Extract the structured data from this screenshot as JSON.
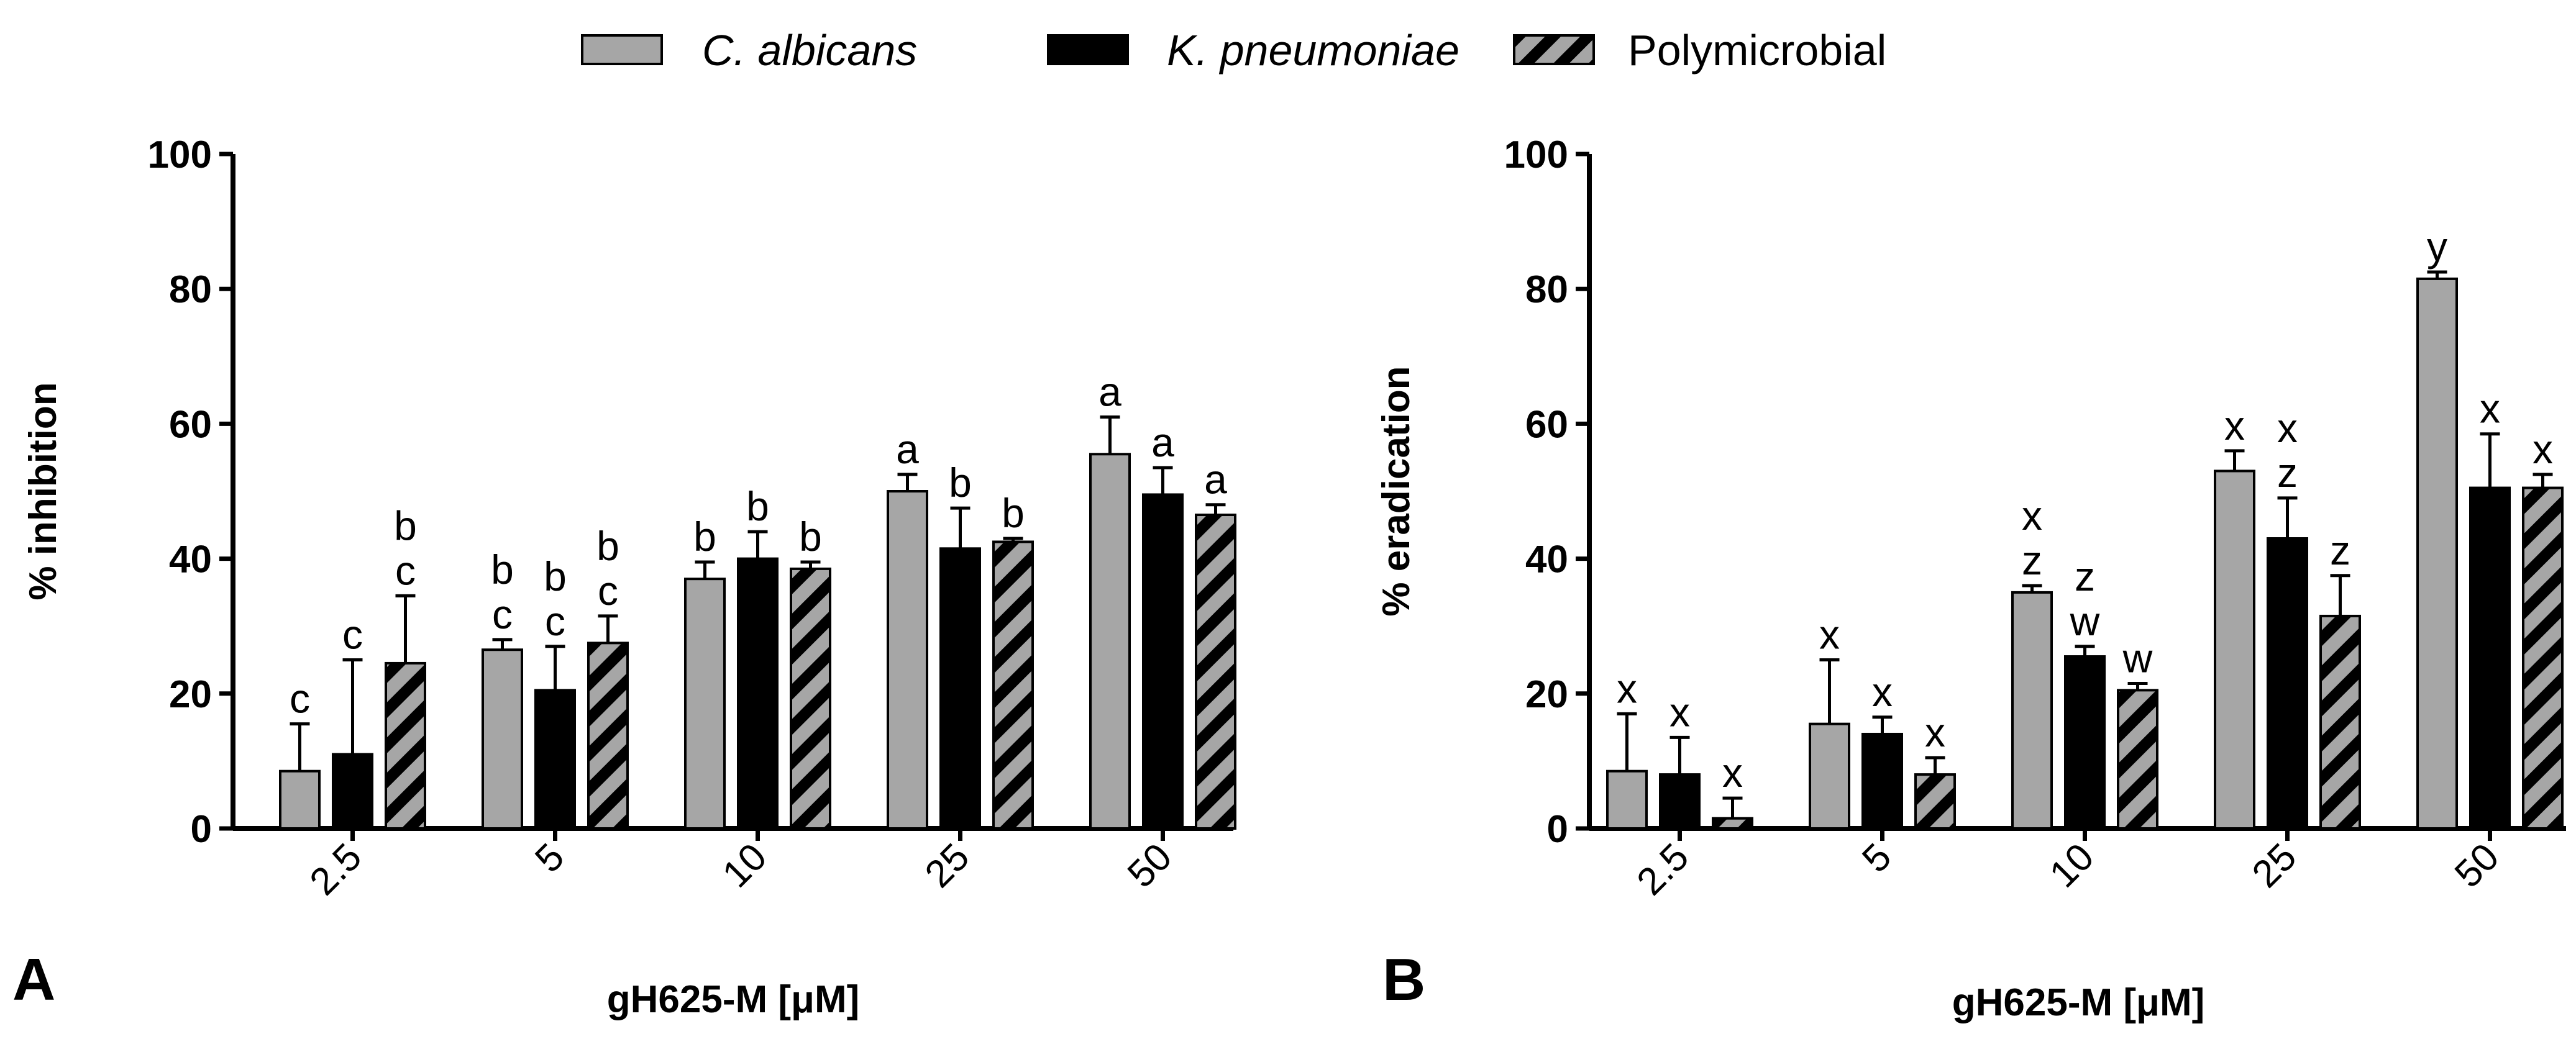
{
  "legend": [
    {
      "label": "C. albicans",
      "italic": true,
      "pattern": "gray"
    },
    {
      "label": "K. pneumoniae",
      "italic": true,
      "pattern": "black"
    },
    {
      "label": "Polymicrobial",
      "italic": false,
      "pattern": "hatched"
    }
  ],
  "colors": {
    "gray": "#a6a6a6",
    "black": "#000000",
    "hatch_bg": "#a6a6a6",
    "hatch_line": "#000000"
  },
  "chart_data": [
    {
      "type": "bar",
      "panel": "A",
      "categories": [
        "2.5",
        "5",
        "10",
        "25",
        "50"
      ],
      "xlabel": "gH625-M [μM]",
      "ylabel": "% inhibition",
      "ylim": [
        0,
        100
      ],
      "yticks": [
        "0",
        "20",
        "40",
        "60",
        "80",
        "100"
      ],
      "series": [
        {
          "name": "C. albicans",
          "values": [
            8.5,
            26.5,
            37,
            50,
            55.5
          ],
          "errors": [
            7,
            1.5,
            2.5,
            2.5,
            5.5
          ],
          "labels": [
            [
              "c"
            ],
            [
              "b",
              "c"
            ],
            [
              "b"
            ],
            [
              "a"
            ],
            [
              "a"
            ]
          ]
        },
        {
          "name": "K. pneumoniae",
          "values": [
            11,
            20.5,
            40,
            41.5,
            49.5
          ],
          "errors": [
            14,
            6.5,
            4,
            6,
            4
          ],
          "labels": [
            [
              "c"
            ],
            [
              "b",
              "c"
            ],
            [
              "b"
            ],
            [
              "b"
            ],
            [
              "a"
            ]
          ]
        },
        {
          "name": "Polymicrobial",
          "values": [
            24.5,
            27.5,
            38.5,
            42.5,
            46.5
          ],
          "errors": [
            10,
            4,
            1,
            0.5,
            1.5
          ],
          "labels": [
            [
              "b",
              "c"
            ],
            [
              "b",
              "c"
            ],
            [
              "b"
            ],
            [
              "b"
            ],
            [
              "a"
            ]
          ]
        }
      ]
    },
    {
      "type": "bar",
      "panel": "B",
      "categories": [
        "2.5",
        "5",
        "10",
        "25",
        "50"
      ],
      "xlabel": "gH625-M [μM]",
      "ylabel": "% eradication",
      "ylim": [
        0,
        100
      ],
      "yticks": [
        "0",
        "20",
        "40",
        "60",
        "80",
        "100"
      ],
      "series": [
        {
          "name": "C. albicans",
          "values": [
            8.5,
            15.5,
            35,
            53,
            81.5
          ],
          "errors": [
            8.5,
            9.5,
            1,
            3,
            1
          ],
          "labels": [
            [
              "x"
            ],
            [
              "x"
            ],
            [
              "x",
              "z"
            ],
            [
              "x"
            ],
            [
              "y"
            ]
          ]
        },
        {
          "name": "K. pneumoniae",
          "values": [
            8,
            14,
            25.5,
            43,
            50.5
          ],
          "errors": [
            5.5,
            2.5,
            1.5,
            6,
            8
          ],
          "labels": [
            [
              "x"
            ],
            [
              "x"
            ],
            [
              "z",
              "w"
            ],
            [
              "x",
              "z"
            ],
            [
              "x"
            ]
          ]
        },
        {
          "name": "Polymicrobial",
          "values": [
            1.5,
            8,
            20.5,
            31.5,
            50.5
          ],
          "errors": [
            3,
            2.5,
            1,
            6,
            2
          ],
          "labels": [
            [
              "x"
            ],
            [
              "x"
            ],
            [
              "w"
            ],
            [
              "z"
            ],
            [
              "x"
            ]
          ]
        }
      ]
    }
  ]
}
